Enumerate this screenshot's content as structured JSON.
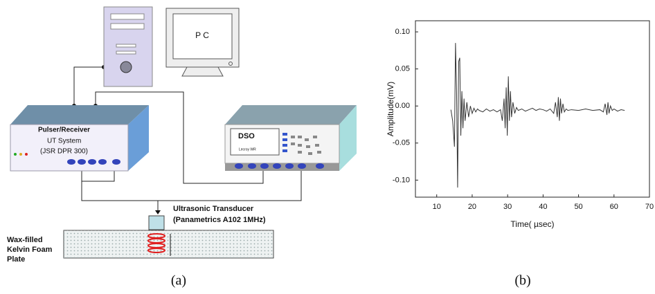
{
  "diagram": {
    "pc_label": "P C",
    "pulser_title": "Pulser/Receiver",
    "pulser_system": "UT System",
    "pulser_model": "(JSR  DPR 300)",
    "dso_label": "DSO",
    "dso_model": "Lecroy WR",
    "transducer_name": "Ultrasonic Transducer",
    "transducer_model": "(Panametrics A102 1MHz)",
    "plate_label": [
      "Wax-filled",
      "Kelvin Foam",
      "Plate"
    ]
  },
  "captions": [
    "(a)",
    "(b)"
  ],
  "chart_data": {
    "type": "line",
    "x_label": "Time( µsec)",
    "y_label": "Amplitude(mV)",
    "color": "#333333",
    "xlim": [
      4,
      70
    ],
    "xticks": [
      10,
      20,
      30,
      40,
      50,
      60,
      70
    ],
    "ylim": [
      -0.123,
      0.115
    ],
    "yticks": [
      {
        "value": -0.1,
        "label": "-0.10"
      },
      -0.05,
      {
        "value": 0,
        "label": "0.00"
      },
      0.05,
      {
        "value": 0.1,
        "label": "0.10"
      }
    ],
    "x": [
      14,
      14.5,
      15,
      15.3,
      15.6,
      15.9,
      16.2,
      16.5,
      16.8,
      17.1,
      17.4,
      17.7,
      18,
      18.5,
      19,
      19.5,
      20,
      20.5,
      21,
      21.5,
      22,
      23,
      24,
      25,
      26,
      27,
      28,
      28.5,
      29,
      29.3,
      29.6,
      29.9,
      30.2,
      30.5,
      30.8,
      31.1,
      31.5,
      32,
      32.5,
      33,
      34,
      35,
      36,
      37,
      38,
      39,
      40,
      41,
      42,
      43,
      43.5,
      44,
      44.3,
      44.6,
      44.9,
      45.2,
      45.6,
      46,
      46.5,
      47,
      48,
      50,
      52,
      54,
      56,
      57,
      57.5,
      58,
      58.3,
      58.6,
      59,
      59.5,
      60,
      61,
      62,
      63
    ],
    "values": [
      -0.005,
      -0.02,
      -0.055,
      0.085,
      0.02,
      -0.11,
      0.06,
      0.065,
      -0.04,
      0.02,
      -0.03,
      0.01,
      -0.02,
      0.005,
      -0.015,
      0.0,
      -0.01,
      -0.003,
      -0.008,
      -0.004,
      -0.006,
      -0.008,
      -0.004,
      -0.007,
      -0.005,
      -0.008,
      -0.005,
      -0.02,
      0.01,
      -0.03,
      0.025,
      -0.04,
      0.04,
      -0.02,
      0.02,
      -0.015,
      0.005,
      -0.01,
      -0.002,
      -0.006,
      -0.004,
      -0.007,
      -0.005,
      -0.003,
      -0.006,
      -0.004,
      -0.005,
      -0.007,
      -0.004,
      -0.01,
      0.005,
      -0.015,
      0.012,
      -0.02,
      0.01,
      -0.01,
      0.003,
      -0.008,
      -0.004,
      -0.006,
      -0.005,
      -0.006,
      -0.004,
      -0.006,
      -0.005,
      -0.008,
      0.003,
      -0.012,
      0.005,
      -0.01,
      0.0,
      -0.006,
      -0.004,
      -0.007,
      -0.005,
      -0.006
    ]
  }
}
